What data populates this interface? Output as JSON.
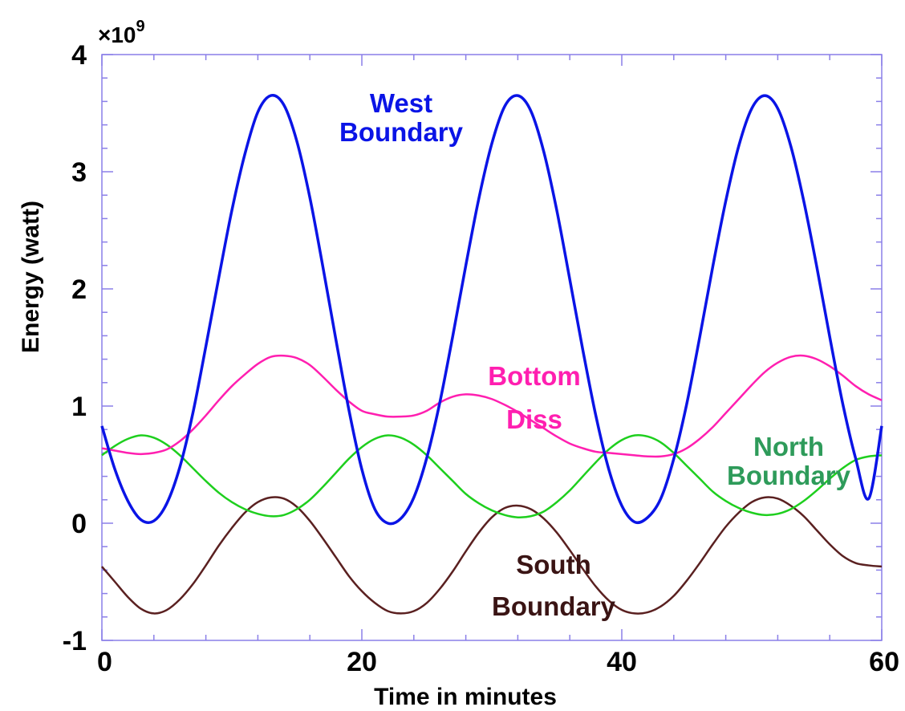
{
  "chart_data": {
    "type": "line",
    "xlabel": "Time in minutes",
    "ylabel": "Energy (watt)",
    "y_multiplier_prefix": "×10",
    "y_multiplier_exponent": "9",
    "xlim": [
      0,
      60
    ],
    "ylim": [
      -1,
      4
    ],
    "x_ticks": [
      "0",
      "20",
      "40",
      "60"
    ],
    "y_ticks": [
      "-1",
      "0",
      "1",
      "2",
      "3",
      "4"
    ],
    "grid": false,
    "x": [
      0,
      1,
      2,
      3,
      4,
      5,
      6,
      7,
      8,
      9,
      10,
      11,
      12,
      13,
      14,
      15,
      16,
      17,
      18,
      19,
      20,
      21,
      22,
      23,
      24,
      25,
      26,
      27,
      28,
      29,
      30,
      31,
      32,
      33,
      34,
      35,
      36,
      37,
      38,
      39,
      40,
      41,
      42,
      43,
      44,
      45,
      46,
      47,
      48,
      49,
      50,
      51,
      52,
      53,
      54,
      55,
      56,
      57,
      58,
      59,
      60
    ],
    "series": [
      {
        "name": "West Boundary",
        "label_lines": [
          "West",
          "Boundary"
        ],
        "color": "#0a14e6",
        "values": [
          0.83,
          0.46,
          0.19,
          0.03,
          0.02,
          0.17,
          0.48,
          0.94,
          1.51,
          2.1,
          2.67,
          3.15,
          3.51,
          3.65,
          3.57,
          3.26,
          2.78,
          2.19,
          1.57,
          0.97,
          0.46,
          0.12,
          0.0,
          0.04,
          0.22,
          0.56,
          1.03,
          1.6,
          2.2,
          2.77,
          3.24,
          3.56,
          3.65,
          3.52,
          3.17,
          2.67,
          2.08,
          1.48,
          0.92,
          0.46,
          0.15,
          0.01,
          0.05,
          0.21,
          0.55,
          1.02,
          1.59,
          2.19,
          2.75,
          3.22,
          3.54,
          3.65,
          3.54,
          3.22,
          2.75,
          2.19,
          1.59,
          1.02,
          0.55,
          0.21,
          0.83
        ]
      },
      {
        "name": "Bottom Diss",
        "label_lines": [
          "Bottom",
          "Diss"
        ],
        "color": "#ff1fb0",
        "values": [
          0.64,
          0.62,
          0.6,
          0.59,
          0.6,
          0.63,
          0.7,
          0.8,
          0.92,
          1.05,
          1.17,
          1.27,
          1.36,
          1.42,
          1.43,
          1.41,
          1.35,
          1.25,
          1.14,
          1.04,
          0.96,
          0.93,
          0.91,
          0.91,
          0.92,
          0.96,
          1.03,
          1.08,
          1.1,
          1.09,
          1.06,
          1.01,
          0.95,
          0.88,
          0.81,
          0.74,
          0.68,
          0.64,
          0.61,
          0.6,
          0.59,
          0.58,
          0.57,
          0.57,
          0.59,
          0.64,
          0.72,
          0.82,
          0.94,
          1.06,
          1.18,
          1.29,
          1.37,
          1.42,
          1.43,
          1.4,
          1.34,
          1.26,
          1.17,
          1.1,
          1.05
        ]
      },
      {
        "name": "North Boundary",
        "label_lines": [
          "North",
          "Boundary"
        ],
        "color": "#1ecf1e",
        "label_color": "#2e9b5a",
        "values": [
          0.58,
          0.66,
          0.72,
          0.75,
          0.73,
          0.67,
          0.58,
          0.47,
          0.36,
          0.26,
          0.18,
          0.12,
          0.08,
          0.06,
          0.07,
          0.12,
          0.2,
          0.31,
          0.43,
          0.55,
          0.65,
          0.72,
          0.75,
          0.73,
          0.67,
          0.58,
          0.47,
          0.36,
          0.25,
          0.17,
          0.11,
          0.07,
          0.05,
          0.06,
          0.1,
          0.18,
          0.28,
          0.4,
          0.52,
          0.63,
          0.71,
          0.75,
          0.74,
          0.69,
          0.6,
          0.49,
          0.38,
          0.27,
          0.19,
          0.13,
          0.09,
          0.07,
          0.08,
          0.12,
          0.19,
          0.28,
          0.38,
          0.47,
          0.54,
          0.57,
          0.58
        ]
      },
      {
        "name": "South Boundary",
        "label_lines": [
          "South",
          "Boundary"
        ],
        "color": "#5a2020",
        "label_color": "#3a1414",
        "values": [
          -0.37,
          -0.5,
          -0.63,
          -0.73,
          -0.77,
          -0.74,
          -0.65,
          -0.52,
          -0.36,
          -0.19,
          -0.04,
          0.09,
          0.18,
          0.22,
          0.21,
          0.14,
          0.02,
          -0.13,
          -0.29,
          -0.45,
          -0.58,
          -0.68,
          -0.75,
          -0.77,
          -0.75,
          -0.68,
          -0.56,
          -0.41,
          -0.24,
          -0.08,
          0.05,
          0.13,
          0.15,
          0.12,
          0.04,
          -0.08,
          -0.23,
          -0.39,
          -0.54,
          -0.66,
          -0.74,
          -0.77,
          -0.76,
          -0.71,
          -0.62,
          -0.49,
          -0.34,
          -0.18,
          -0.03,
          0.09,
          0.18,
          0.22,
          0.21,
          0.15,
          0.06,
          -0.06,
          -0.18,
          -0.28,
          -0.34,
          -0.36,
          -0.37
        ]
      }
    ]
  }
}
